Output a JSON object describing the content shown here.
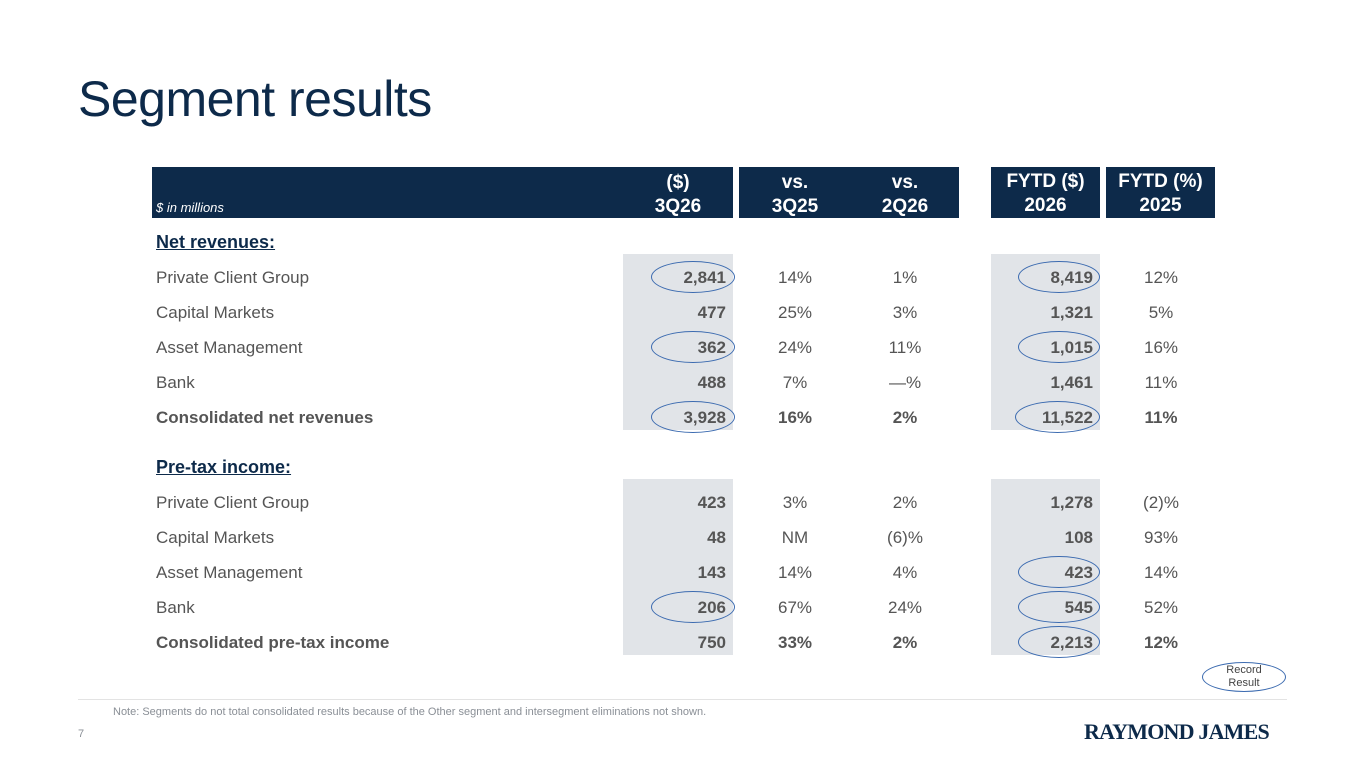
{
  "title": "Segment results",
  "header": {
    "units": "$ in millions",
    "col_q": [
      "($)",
      "3Q26"
    ],
    "col_v1": [
      "vs.",
      "3Q25"
    ],
    "col_v2": [
      "vs.",
      "2Q26"
    ],
    "col_fy": [
      "FYTD ($)",
      "2026"
    ],
    "col_fp": [
      "FYTD (%)",
      "2025"
    ]
  },
  "sections": {
    "net_revenues": "Net revenues:",
    "pretax": "Pre-tax income:"
  },
  "net_revenues_rows": [
    {
      "label": "Private Client Group",
      "q": "2,841",
      "v1": "14%",
      "v2": "1%",
      "fy": "8,419",
      "fp": "12%"
    },
    {
      "label": "Capital Markets",
      "q": "477",
      "v1": "25%",
      "v2": "3%",
      "fy": "1,321",
      "fp": "5%"
    },
    {
      "label": "Asset Management",
      "q": "362",
      "v1": "24%",
      "v2": "11%",
      "fy": "1,015",
      "fp": "16%"
    },
    {
      "label": "Bank",
      "q": "488",
      "v1": "7%",
      "v2": "—%",
      "fy": "1,461",
      "fp": "11%"
    },
    {
      "label": "Consolidated net revenues",
      "q": "3,928",
      "v1": "16%",
      "v2": "2%",
      "fy": "11,522",
      "fp": "11%"
    }
  ],
  "pretax_rows": [
    {
      "label": "Private Client Group",
      "q": "423",
      "v1": "3%",
      "v2": "2%",
      "fy": "1,278",
      "fp": "(2)%"
    },
    {
      "label": "Capital Markets",
      "q": "48",
      "v1": "NM",
      "v2": "(6)%",
      "fy": "108",
      "fp": "93%"
    },
    {
      "label": "Asset Management",
      "q": "143",
      "v1": "14%",
      "v2": "4%",
      "fy": "423",
      "fp": "14%"
    },
    {
      "label": "Bank",
      "q": "206",
      "v1": "67%",
      "v2": "24%",
      "fy": "545",
      "fp": "52%"
    },
    {
      "label": "Consolidated pre-tax income",
      "q": "750",
      "v1": "33%",
      "v2": "2%",
      "fy": "2,213",
      "fp": "12%"
    }
  ],
  "record_label": [
    "Record",
    "Result"
  ],
  "note": "Note: Segments do not total consolidated results because of the Other segment and intersegment eliminations not shown.",
  "page_number": "7",
  "logo": "RAYMOND JAMES"
}
